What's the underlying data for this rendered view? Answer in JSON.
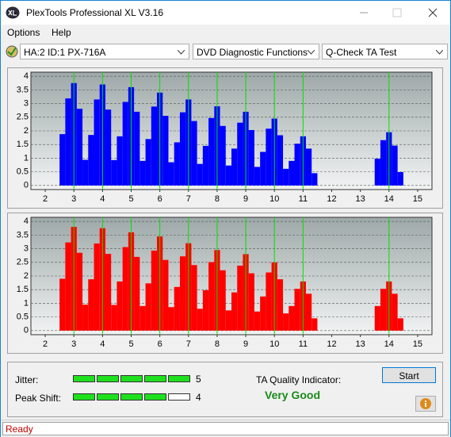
{
  "window": {
    "title": "PlexTools Professional XL V3.16",
    "status": "Ready"
  },
  "menu": [
    "Options",
    "Help"
  ],
  "toolbar": {
    "drive": "HA:2 ID:1  PX-716A",
    "function": "DVD Diagnostic Functions",
    "test": "Q-Check TA Test"
  },
  "chart_data": [
    {
      "type": "bar",
      "color": "#0000ff",
      "x": [
        2.6,
        2.8,
        3,
        3.2,
        3.4,
        3.6,
        3.8,
        4,
        4.2,
        4.4,
        4.6,
        4.8,
        5,
        5.2,
        5.4,
        5.6,
        5.8,
        6,
        6.2,
        6.4,
        6.6,
        6.8,
        7,
        7.2,
        7.4,
        7.6,
        7.8,
        8,
        8.2,
        8.4,
        8.6,
        8.8,
        9,
        9.2,
        9.4,
        9.6,
        9.8,
        10,
        10.2,
        10.4,
        10.6,
        10.8,
        11,
        11.2,
        11.4,
        13.6,
        13.8,
        14,
        14.2,
        14.4
      ],
      "values": [
        1.88,
        3.19,
        3.75,
        2.81,
        0.94,
        1.85,
        3.15,
        3.7,
        2.78,
        0.93,
        1.8,
        3.06,
        3.6,
        2.7,
        0.9,
        1.7,
        2.89,
        3.4,
        2.55,
        0.85,
        1.58,
        2.68,
        3.15,
        2.36,
        0.79,
        1.45,
        2.47,
        2.9,
        2.18,
        0.73,
        1.35,
        2.3,
        2.7,
        2.03,
        0.68,
        1.23,
        2.08,
        2.45,
        1.84,
        0.61,
        0.9,
        1.53,
        1.8,
        1.35,
        0.45,
        0.98,
        1.66,
        1.95,
        1.46,
        0.49
      ],
      "markers": [
        3,
        4,
        5,
        6,
        7,
        8,
        9,
        10,
        11,
        14
      ],
      "xlim": [
        1.5,
        15.5
      ],
      "ylim": [
        -0.15,
        4.15
      ],
      "xticks": [
        2,
        3,
        4,
        5,
        6,
        7,
        8,
        9,
        10,
        11,
        12,
        13,
        14,
        15
      ],
      "yticks": [
        0,
        0.5,
        1,
        1.5,
        2,
        2.5,
        3,
        3.5,
        4
      ],
      "grid": true
    },
    {
      "type": "bar",
      "color": "#ff0000",
      "x": [
        2.6,
        2.8,
        3,
        3.2,
        3.4,
        3.6,
        3.8,
        4,
        4.2,
        4.4,
        4.6,
        4.8,
        5,
        5.2,
        5.4,
        5.6,
        5.8,
        6,
        6.2,
        6.4,
        6.6,
        6.8,
        7,
        7.2,
        7.4,
        7.6,
        7.8,
        8,
        8.2,
        8.4,
        8.6,
        8.8,
        9,
        9.2,
        9.4,
        9.6,
        9.8,
        10,
        10.2,
        10.4,
        10.6,
        10.8,
        11,
        11.2,
        11.4,
        13.6,
        13.8,
        14,
        14.2,
        14.4
      ],
      "values": [
        1.9,
        3.23,
        3.8,
        2.85,
        0.95,
        1.88,
        3.19,
        3.75,
        2.81,
        0.94,
        1.8,
        3.06,
        3.6,
        2.7,
        0.9,
        1.73,
        2.93,
        3.45,
        2.59,
        0.86,
        1.6,
        2.72,
        3.2,
        2.4,
        0.8,
        1.48,
        2.51,
        2.95,
        2.21,
        0.74,
        1.4,
        2.38,
        2.8,
        2.1,
        0.7,
        1.25,
        2.13,
        2.5,
        1.88,
        0.63,
        0.9,
        1.53,
        1.8,
        1.35,
        0.45,
        0.9,
        1.53,
        1.8,
        1.35,
        0.45
      ],
      "markers": [
        3,
        4,
        5,
        6,
        7,
        8,
        9,
        10,
        11,
        14
      ],
      "xlim": [
        1.5,
        15.5
      ],
      "ylim": [
        -0.15,
        4.15
      ],
      "xticks": [
        2,
        3,
        4,
        5,
        6,
        7,
        8,
        9,
        10,
        11,
        12,
        13,
        14,
        15
      ],
      "yticks": [
        0,
        0.5,
        1,
        1.5,
        2,
        2.5,
        3,
        3.5,
        4
      ],
      "grid": true
    }
  ],
  "results": {
    "jitter": {
      "label": "Jitter:",
      "value": 5
    },
    "peak_shift": {
      "label": "Peak Shift:",
      "value": 4
    },
    "quality_label": "TA Quality Indicator:",
    "quality": "Very Good",
    "start": "Start"
  }
}
